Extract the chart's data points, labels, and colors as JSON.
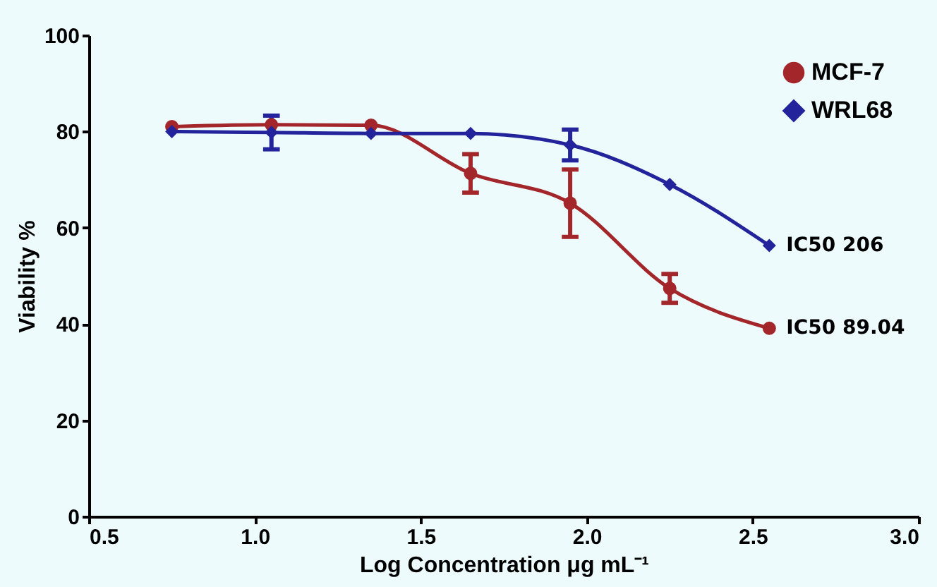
{
  "chart_data": {
    "type": "line",
    "xlabel": "Log Concentration μg mL⁻¹",
    "ylabel": "Viability %",
    "x": [
      0.75,
      1.05,
      1.35,
      1.65,
      1.95,
      2.25,
      2.55
    ],
    "series": [
      {
        "name": "MCF-7",
        "color": "#a3262a",
        "marker": "circle",
        "values": [
          81,
          81.4,
          81.3,
          71.3,
          65.1,
          47.4,
          39.1
        ],
        "errors": [
          null,
          null,
          null,
          4,
          7,
          3,
          null
        ]
      },
      {
        "name": "WRL68",
        "color": "#23239b",
        "marker": "diamond",
        "values": [
          80,
          79.8,
          79.6,
          79.6,
          77.2,
          69,
          56.3
        ],
        "errors": [
          null,
          3.5,
          null,
          null,
          3.2,
          null,
          null
        ]
      }
    ],
    "xlim": [
      0.5,
      3.0
    ],
    "xticks": [
      0.5,
      {
        "value": 1.0,
        "label": "1.0"
      },
      1.5,
      {
        "value": 2.0,
        "label": "2.0"
      },
      2.5,
      {
        "value": 3.0,
        "label": "3.0"
      }
    ],
    "ylim": [
      0,
      100
    ],
    "yticks": [
      0,
      20,
      40,
      60,
      80,
      100
    ],
    "grid": false,
    "legend": "top right",
    "annotations": [
      {
        "text": "IC50  206",
        "x": 2.55,
        "y": 56.3
      },
      {
        "text": "IC50    89.04",
        "x": 2.55,
        "y": 39.1
      }
    ]
  }
}
